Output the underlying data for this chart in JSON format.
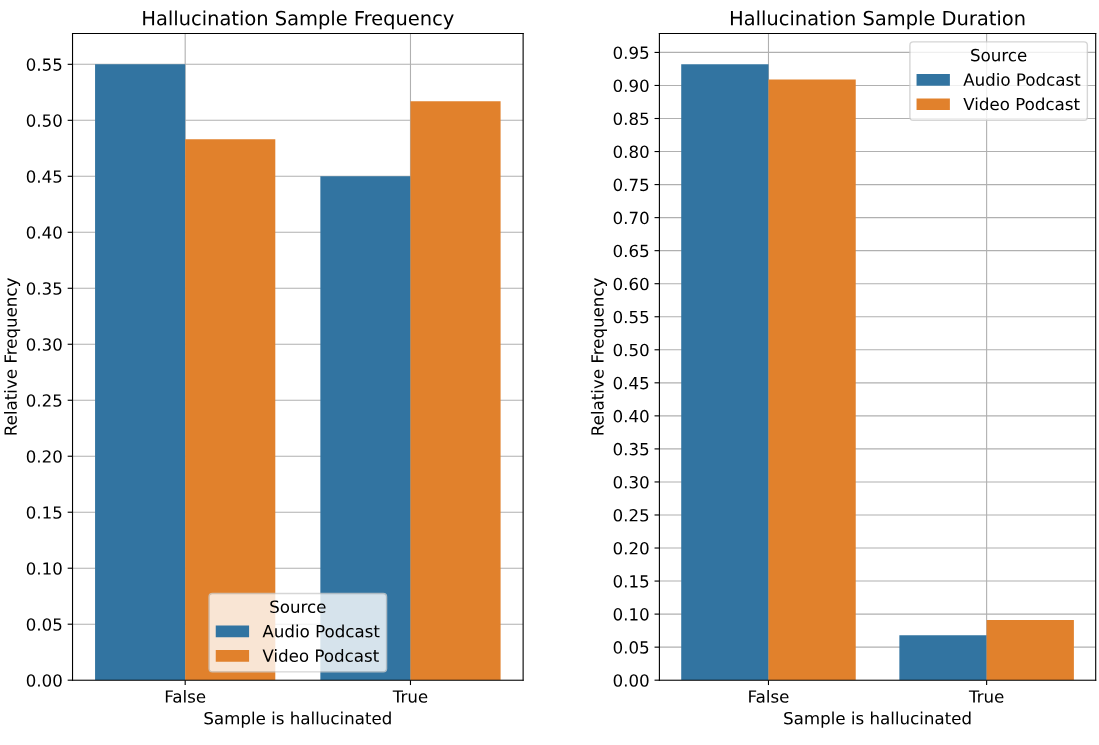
{
  "chart_data": [
    {
      "type": "bar",
      "title": "Hallucination Sample Frequency",
      "xlabel": "Sample is hallucinated",
      "ylabel": "Relative Frequency",
      "legend_title": "Source",
      "categories": [
        "False",
        "True"
      ],
      "series": [
        {
          "name": "Audio Podcast",
          "color": "#3274a1",
          "values": [
            0.55,
            0.45
          ]
        },
        {
          "name": "Video Podcast",
          "color": "#e1812c",
          "values": [
            0.483,
            0.517
          ]
        }
      ],
      "ylim": [
        0,
        0.5775
      ],
      "yticks": [
        {
          "value": 0,
          "label": "0.00"
        },
        0.05,
        {
          "value": 0.1,
          "label": "0.10"
        },
        0.15,
        {
          "value": 0.2,
          "label": "0.20"
        },
        0.25,
        {
          "value": 0.3,
          "label": "0.30"
        },
        0.35,
        {
          "value": 0.4,
          "label": "0.40"
        },
        0.45,
        {
          "value": 0.5,
          "label": "0.50"
        },
        0.55
      ],
      "grid": true,
      "legend": "bottom"
    },
    {
      "type": "bar",
      "title": "Hallucination Sample Duration",
      "xlabel": "Sample is hallucinated",
      "ylabel": "Relative Frequency",
      "legend_title": "Source",
      "categories": [
        "False",
        "True"
      ],
      "series": [
        {
          "name": "Audio Podcast",
          "color": "#3274a1",
          "values": [
            0.932,
            0.068
          ]
        },
        {
          "name": "Video Podcast",
          "color": "#e1812c",
          "values": [
            0.909,
            0.091
          ]
        }
      ],
      "ylim": [
        0,
        0.9786
      ],
      "yticks": [
        {
          "value": 0,
          "label": "0.00"
        },
        0.05,
        {
          "value": 0.1,
          "label": "0.10"
        },
        0.15,
        {
          "value": 0.2,
          "label": "0.20"
        },
        0.25,
        {
          "value": 0.3,
          "label": "0.30"
        },
        0.35,
        {
          "value": 0.4,
          "label": "0.40"
        },
        0.45,
        {
          "value": 0.5,
          "label": "0.50"
        },
        0.55,
        {
          "value": 0.6,
          "label": "0.60"
        },
        0.65,
        {
          "value": 0.7,
          "label": "0.70"
        },
        0.75,
        {
          "value": 0.8,
          "label": "0.80"
        },
        0.85,
        {
          "value": 0.9,
          "label": "0.90"
        },
        0.95
      ],
      "grid": true,
      "legend": "top right"
    }
  ]
}
